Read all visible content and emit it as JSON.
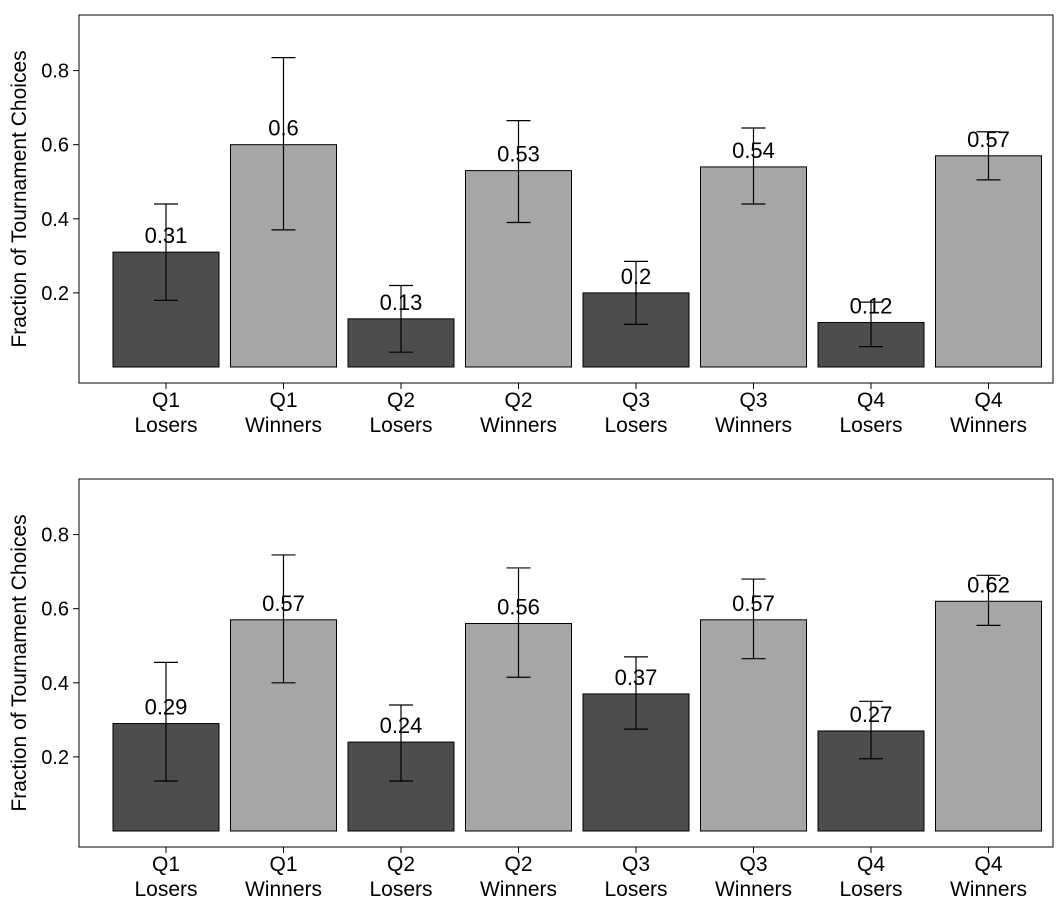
{
  "colors": {
    "losers": "#4d4d4d",
    "winners": "#a6a6a6",
    "frame": "#000000",
    "background": "#ffffff"
  },
  "chart_data": [
    {
      "type": "bar",
      "ylabel": "Fraction of Tournament Choices",
      "xlabel": "",
      "ylim": [
        0,
        0.95
      ],
      "yticks": [
        0.2,
        0.4,
        0.6,
        0.8
      ],
      "ytick_labels": [
        "0.2",
        "0.4",
        "0.6",
        "0.8"
      ],
      "grid": false,
      "categories": [
        [
          "Q1",
          "Losers"
        ],
        [
          "Q1",
          "Winners"
        ],
        [
          "Q2",
          "Losers"
        ],
        [
          "Q2",
          "Winners"
        ],
        [
          "Q3",
          "Losers"
        ],
        [
          "Q3",
          "Winners"
        ],
        [
          "Q4",
          "Losers"
        ],
        [
          "Q4",
          "Winners"
        ]
      ],
      "groups": [
        "losers",
        "winners",
        "losers",
        "winners",
        "losers",
        "winners",
        "losers",
        "winners"
      ],
      "values": [
        0.31,
        0.6,
        0.13,
        0.53,
        0.2,
        0.54,
        0.12,
        0.57
      ],
      "value_labels": [
        "0.31",
        "0.6",
        "0.13",
        "0.53",
        "0.2",
        "0.54",
        "0.12",
        "0.57"
      ],
      "error_low": [
        0.18,
        0.37,
        0.04,
        0.39,
        0.115,
        0.44,
        0.055,
        0.505
      ],
      "error_high": [
        0.44,
        0.835,
        0.22,
        0.665,
        0.285,
        0.645,
        0.175,
        0.635
      ]
    },
    {
      "type": "bar",
      "ylabel": "Fraction of Tournament Choices",
      "xlabel": "",
      "ylim": [
        0,
        0.95
      ],
      "yticks": [
        0.2,
        0.4,
        0.6,
        0.8
      ],
      "ytick_labels": [
        "0.2",
        "0.4",
        "0.6",
        "0.8"
      ],
      "grid": false,
      "categories": [
        [
          "Q1",
          "Losers"
        ],
        [
          "Q1",
          "Winners"
        ],
        [
          "Q2",
          "Losers"
        ],
        [
          "Q2",
          "Winners"
        ],
        [
          "Q3",
          "Losers"
        ],
        [
          "Q3",
          "Winners"
        ],
        [
          "Q4",
          "Losers"
        ],
        [
          "Q4",
          "Winners"
        ]
      ],
      "groups": [
        "losers",
        "winners",
        "losers",
        "winners",
        "losers",
        "winners",
        "losers",
        "winners"
      ],
      "values": [
        0.29,
        0.57,
        0.24,
        0.56,
        0.37,
        0.57,
        0.27,
        0.62
      ],
      "value_labels": [
        "0.29",
        "0.57",
        "0.24",
        "0.56",
        "0.37",
        "0.57",
        "0.27",
        "0.62"
      ],
      "error_low": [
        0.135,
        0.4,
        0.135,
        0.415,
        0.275,
        0.465,
        0.195,
        0.555
      ],
      "error_high": [
        0.455,
        0.745,
        0.34,
        0.71,
        0.47,
        0.68,
        0.35,
        0.69
      ]
    }
  ]
}
